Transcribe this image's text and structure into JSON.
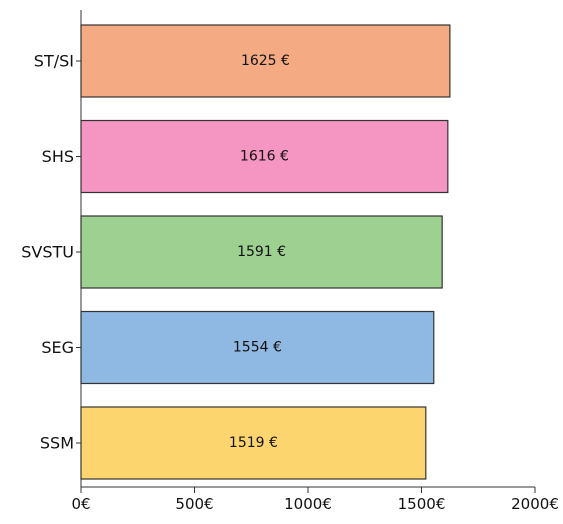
{
  "chart_data": {
    "type": "bar",
    "orientation": "horizontal",
    "title": "",
    "xlabel": "",
    "ylabel": "",
    "xlim": [
      0,
      2000
    ],
    "x_ticks": [
      {
        "value": 0,
        "label": "0€"
      },
      {
        "value": 500,
        "label": "500€"
      },
      {
        "value": 1000,
        "label": "1000€"
      },
      {
        "value": 1500,
        "label": "1500€"
      },
      {
        "value": 2000,
        "label": "2000€"
      }
    ],
    "categories": [
      "ST/SI",
      "SHS",
      "SVSTU",
      "SEG",
      "SSM"
    ],
    "values": [
      1625,
      1616,
      1591,
      1554,
      1519
    ],
    "data_labels": [
      "1625 €",
      "1616 €",
      "1591 €",
      "1554 €",
      "1519 €"
    ],
    "colors": [
      "#f4ab84",
      "#f595c1",
      "#9ed092",
      "#8fb8e2",
      "#fdd56e"
    ],
    "grid": false,
    "legend": "none"
  }
}
